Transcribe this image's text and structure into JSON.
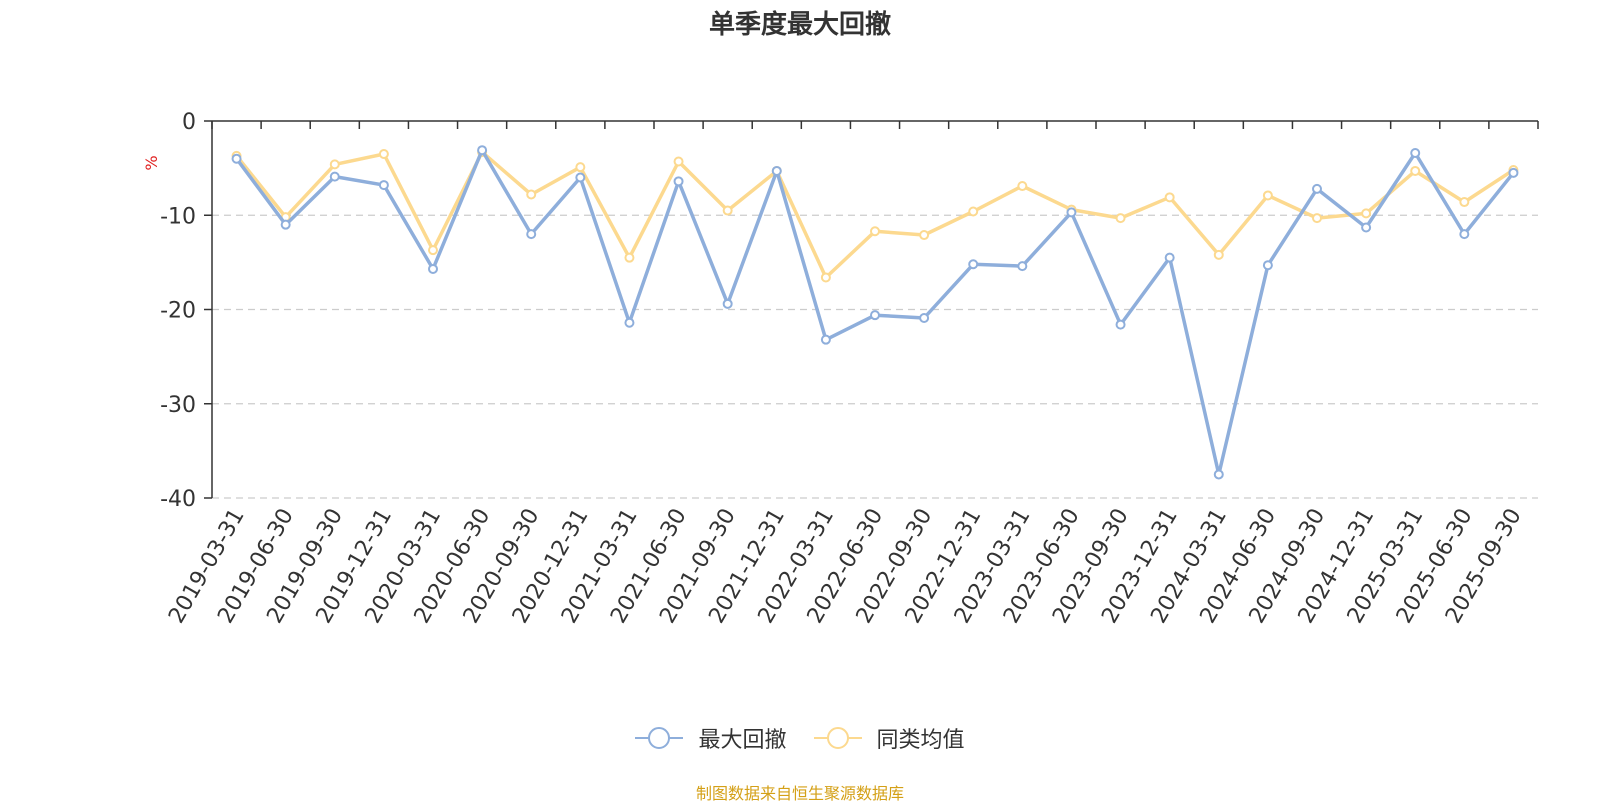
{
  "chart_data": {
    "type": "line",
    "title": "单季度最大回撤",
    "ylabel": "%",
    "xlabel": "",
    "ylim": [
      -40,
      0
    ],
    "yticks": [
      0,
      -10,
      -20,
      -30,
      -40
    ],
    "grid": true,
    "legend_position": "bottom-center",
    "categories": [
      "2019-03-31",
      "2019-06-30",
      "2019-09-30",
      "2019-12-31",
      "2020-03-31",
      "2020-06-30",
      "2020-09-30",
      "2020-12-31",
      "2021-03-31",
      "2021-06-30",
      "2021-09-30",
      "2021-12-31",
      "2022-03-31",
      "2022-06-30",
      "2022-09-30",
      "2022-12-31",
      "2023-03-31",
      "2023-06-30",
      "2023-09-30",
      "2023-12-31",
      "2024-03-31",
      "2024-06-30",
      "2024-09-30",
      "2024-12-31",
      "2025-03-31",
      "2025-06-30",
      "2025-09-30"
    ],
    "series": [
      {
        "name": "最大回撤",
        "color": "#8eaedb",
        "values": [
          -4.0,
          -11.0,
          -5.9,
          -6.8,
          -15.7,
          -3.1,
          -12.0,
          -6.0,
          -21.4,
          -6.4,
          -19.4,
          -5.3,
          -23.2,
          -20.6,
          -20.9,
          -15.2,
          -15.4,
          -9.7,
          -21.6,
          -14.5,
          -37.5,
          -15.3,
          -7.2,
          -11.3,
          -3.4,
          -12.0,
          -5.5
        ]
      },
      {
        "name": "同类均值",
        "color": "#fcd98f",
        "values": [
          -3.7,
          -10.2,
          -4.6,
          -3.5,
          -13.7,
          -3.3,
          -7.8,
          -4.9,
          -14.5,
          -4.3,
          -9.5,
          -5.3,
          -16.6,
          -11.7,
          -12.1,
          -9.6,
          -6.9,
          -9.4,
          -10.3,
          -8.1,
          -14.2,
          -7.9,
          -10.3,
          -9.8,
          -5.3,
          -8.6,
          -5.2
        ]
      }
    ]
  },
  "source_note": "制图数据来自恒生聚源数据库"
}
